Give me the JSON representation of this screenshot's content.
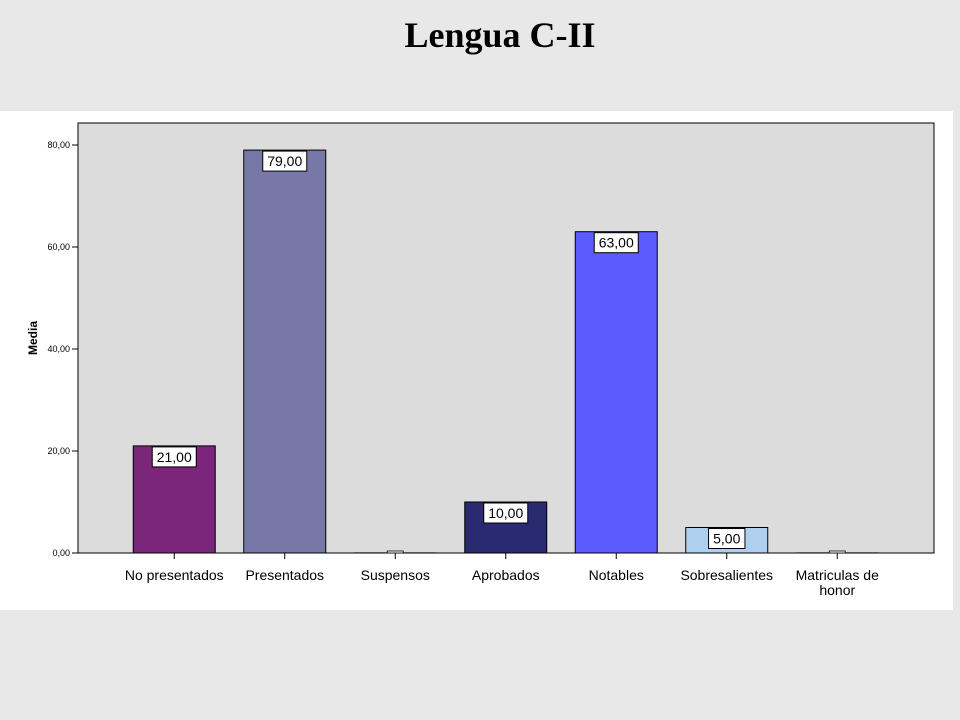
{
  "slide": {
    "title": "Lengua C-II"
  },
  "chart_data": {
    "type": "bar",
    "categories": [
      "No presentados",
      "Presentados",
      "Suspensos",
      "Aprobados",
      "Notables",
      "Sobresalientes",
      "Matrículas de honor"
    ],
    "category_lines": [
      [
        "No presentados"
      ],
      [
        "Presentados"
      ],
      [
        "Suspensos"
      ],
      [
        "Aprobados"
      ],
      [
        "Notables"
      ],
      [
        "Sobresalientes"
      ],
      [
        "Matriculas de",
        "honor"
      ]
    ],
    "values": [
      21,
      79,
      0,
      10,
      63,
      5,
      0
    ],
    "data_labels": [
      "21,00",
      "79,00",
      "",
      "10,00",
      "63,00",
      "5,00",
      ""
    ],
    "colors": [
      "#7b267b",
      "#7878a8",
      "#ffffff",
      "#2a2a70",
      "#5b5bff",
      "#aed0ee",
      "#ffffff"
    ],
    "ylabel": "Media",
    "xlabel": "",
    "ylim": [
      0,
      80
    ],
    "yticks": [
      0,
      20,
      40,
      60,
      80
    ],
    "ytick_labels": [
      "0,00",
      "20,00",
      "40,00",
      "60,00",
      "80,00"
    ],
    "plot_background": "#dcdcdc",
    "grid": false,
    "legend": "none"
  }
}
